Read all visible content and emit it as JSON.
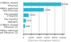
{
  "chart_data": {
    "type": "bar",
    "orientation": "horizontal",
    "xlabel": "Effective throughput (kbit/s)",
    "categories": [
      "10 Mbit/s shared\nEthernet",
      "100 Mbit/s switched\nFast Ethernet",
      "File transfer\nFTP/HTTP",
      "File transfer\nSMB/NFS",
      "10 Mbit/s shared\nEthernet (2)",
      "100 Mbit/s switched\nFast Ethernet (2)"
    ],
    "values": [
      9700,
      5200,
      1350,
      650,
      420,
      55
    ],
    "value_labels": [
      "9700",
      "5200",
      "1350",
      "650",
      "420",
      null
    ],
    "data_labels": true,
    "color": "#29b6d4",
    "xlim": [
      0,
      10500
    ],
    "xticks": [
      0,
      2000,
      4000,
      6000,
      8000,
      10000
    ],
    "grid": true
  }
}
